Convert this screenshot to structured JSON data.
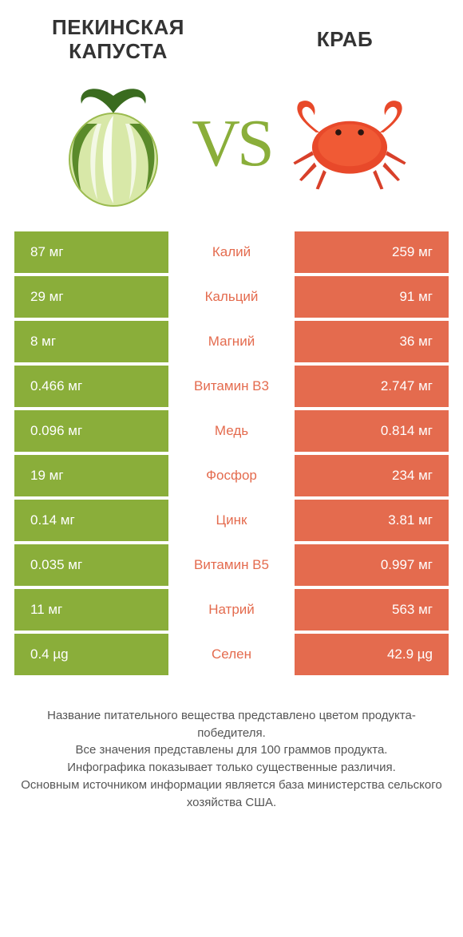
{
  "header": {
    "left_title": "ПЕКИНСКАЯ КАПУСТА",
    "right_title": "КРАБ",
    "vs_label": "VS"
  },
  "colors": {
    "left_bg": "#8aae3a",
    "right_bg": "#e46b4e",
    "vs_color": "#8aae3a",
    "mid_left": "#e46b4e",
    "mid_right": "#8aae3a",
    "footer_text": "#555555",
    "title_text": "#333333"
  },
  "table": {
    "rows": [
      {
        "left": "87 мг",
        "label": "Калий",
        "right": "259 мг",
        "winner": "right"
      },
      {
        "left": "29 мг",
        "label": "Кальций",
        "right": "91 мг",
        "winner": "right"
      },
      {
        "left": "8 мг",
        "label": "Магний",
        "right": "36 мг",
        "winner": "right"
      },
      {
        "left": "0.466 мг",
        "label": "Витамин B3",
        "right": "2.747 мг",
        "winner": "right"
      },
      {
        "left": "0.096 мг",
        "label": "Медь",
        "right": "0.814 мг",
        "winner": "right"
      },
      {
        "left": "19 мг",
        "label": "Фосфор",
        "right": "234 мг",
        "winner": "right"
      },
      {
        "left": "0.14 мг",
        "label": "Цинк",
        "right": "3.81 мг",
        "winner": "right"
      },
      {
        "left": "0.035 мг",
        "label": "Витамин B5",
        "right": "0.997 мг",
        "winner": "right"
      },
      {
        "left": "11 мг",
        "label": "Натрий",
        "right": "563 мг",
        "winner": "right"
      },
      {
        "left": "0.4 µg",
        "label": "Селен",
        "right": "42.9 µg",
        "winner": "right"
      }
    ]
  },
  "footer": {
    "line1": "Название питательного вещества представлено цветом продукта-победителя.",
    "line2": "Все значения представлены для 100 граммов продукта.",
    "line3": "Инфографика показывает только существенные различия.",
    "line4": "Основным источником информации является база министерства сельского хозяйства США."
  }
}
